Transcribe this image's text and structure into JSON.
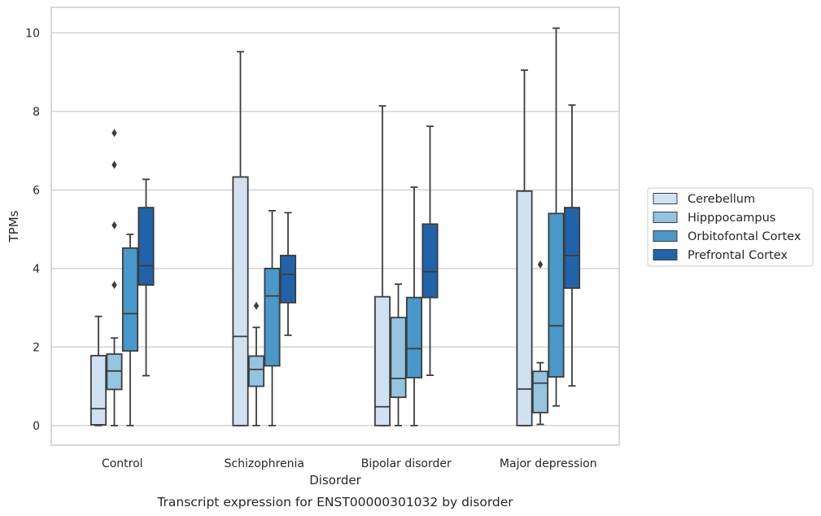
{
  "caption": "Transcript expression for ENST00000301032 by disorder",
  "chart_data": {
    "type": "boxplot",
    "title": "",
    "xlabel": "Disorder",
    "ylabel": "TPMs",
    "ylim": [
      -0.5,
      10.65
    ],
    "yticks": [
      0,
      2,
      4,
      6,
      8,
      10
    ],
    "grid": "horizontal",
    "legend_position": "right",
    "categories": [
      "Control",
      "Schizophrenia",
      "Bipolar disorder",
      "Major depression"
    ],
    "series": [
      {
        "name": "Cerebellum",
        "color": "#d0e1f2",
        "boxes": [
          {
            "whislo": 0.0,
            "q1": 0.02,
            "med": 0.43,
            "q3": 1.78,
            "whishi": 2.78,
            "fliers": []
          },
          {
            "whislo": 0.0,
            "q1": 0.0,
            "med": 2.27,
            "q3": 6.33,
            "whishi": 9.52,
            "fliers": []
          },
          {
            "whislo": 0.0,
            "q1": 0.0,
            "med": 0.48,
            "q3": 3.28,
            "whishi": 8.14,
            "fliers": []
          },
          {
            "whislo": 0.0,
            "q1": 0.0,
            "med": 0.93,
            "q3": 5.97,
            "whishi": 9.05,
            "fliers": []
          }
        ]
      },
      {
        "name": "Hipppocampus",
        "color": "#94c4df",
        "boxes": [
          {
            "whislo": 0.0,
            "q1": 0.92,
            "med": 1.39,
            "q3": 1.82,
            "whishi": 2.23,
            "fliers": [
              3.58,
              5.1,
              6.64,
              7.45
            ]
          },
          {
            "whislo": 0.0,
            "q1": 1.0,
            "med": 1.43,
            "q3": 1.77,
            "whishi": 2.5,
            "fliers": [
              3.05
            ]
          },
          {
            "whislo": 0.0,
            "q1": 0.72,
            "med": 1.2,
            "q3": 2.75,
            "whishi": 3.6,
            "fliers": []
          },
          {
            "whislo": 0.03,
            "q1": 0.33,
            "med": 1.08,
            "q3": 1.38,
            "whishi": 1.6,
            "fliers": [
              4.1
            ]
          }
        ]
      },
      {
        "name": "Orbitofontal Cortex",
        "color": "#4a98c9",
        "boxes": [
          {
            "whislo": 0.0,
            "q1": 1.9,
            "med": 2.85,
            "q3": 4.52,
            "whishi": 4.87,
            "fliers": []
          },
          {
            "whislo": 0.0,
            "q1": 1.52,
            "med": 3.3,
            "q3": 4.0,
            "whishi": 5.47,
            "fliers": []
          },
          {
            "whislo": 0.0,
            "q1": 1.22,
            "med": 1.96,
            "q3": 3.26,
            "whishi": 6.07,
            "fliers": []
          },
          {
            "whislo": 0.5,
            "q1": 1.24,
            "med": 2.54,
            "q3": 5.4,
            "whishi": 10.12,
            "fliers": []
          }
        ]
      },
      {
        "name": "Prefrontal Cortex",
        "color": "#2163aa",
        "boxes": [
          {
            "whislo": 1.27,
            "q1": 3.58,
            "med": 4.07,
            "q3": 5.55,
            "whishi": 6.27,
            "fliers": []
          },
          {
            "whislo": 2.3,
            "q1": 3.13,
            "med": 3.85,
            "q3": 4.33,
            "whishi": 5.42,
            "fliers": []
          },
          {
            "whislo": 1.28,
            "q1": 3.26,
            "med": 3.92,
            "q3": 5.13,
            "whishi": 7.62,
            "fliers": []
          },
          {
            "whislo": 1.01,
            "q1": 3.5,
            "med": 4.33,
            "q3": 5.55,
            "whishi": 8.16,
            "fliers": []
          }
        ]
      }
    ]
  }
}
